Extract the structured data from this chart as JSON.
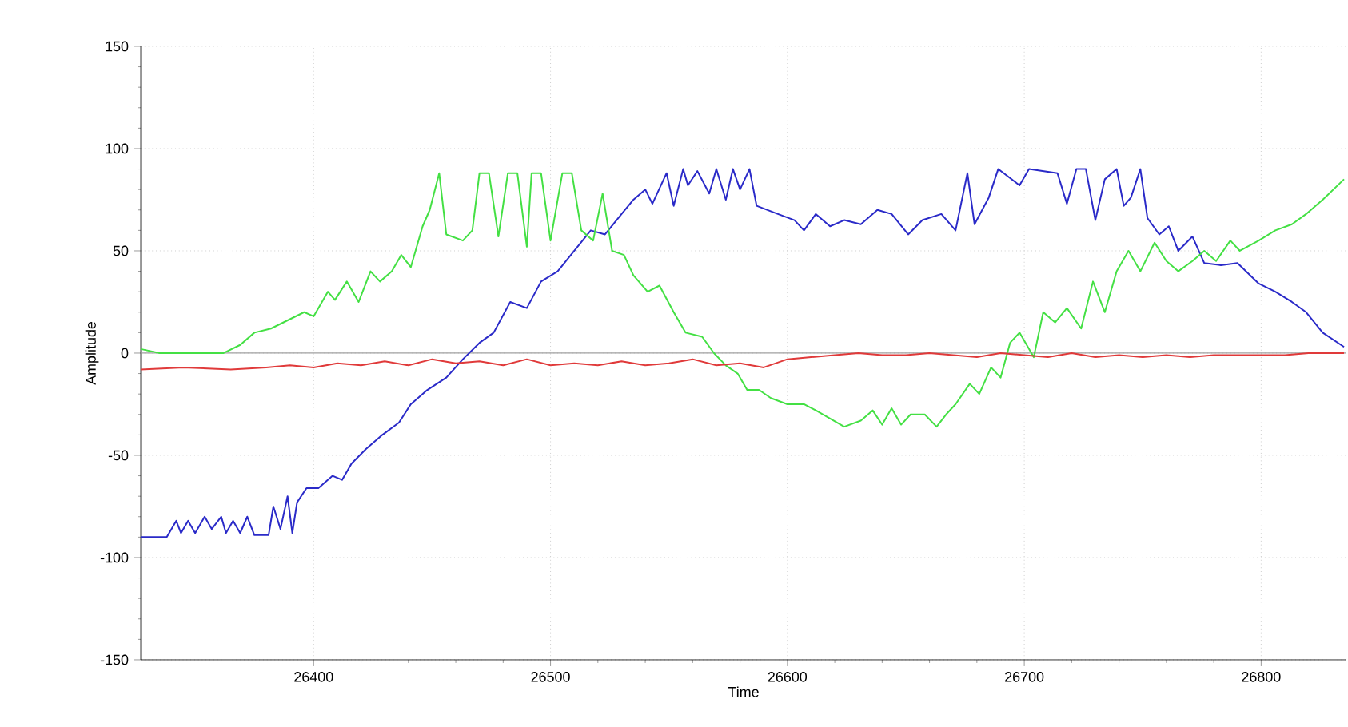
{
  "chart_data": {
    "type": "line",
    "xlabel": "Time",
    "ylabel": "Amplitude",
    "xlim": [
      26327,
      26836
    ],
    "ylim": [
      -150,
      150
    ],
    "xticks": [
      26400,
      26500,
      26600,
      26700,
      26800
    ],
    "yticks": [
      -150,
      -100,
      -50,
      0,
      50,
      100,
      150
    ],
    "grid": true,
    "ref_lines": [
      {
        "axis": "y",
        "value": 0,
        "color": "#a0a0a0"
      }
    ],
    "series": [
      {
        "color": "#2a2ac8",
        "x": [
          26327,
          26338,
          26342,
          26344,
          26347,
          26350,
          26354,
          26357,
          26361,
          26363,
          26366,
          26369,
          26372,
          26375,
          26381,
          26383,
          26386,
          26389,
          26391,
          26393,
          26397,
          26402,
          26408,
          26412,
          26416,
          26422,
          26429,
          26436,
          26441,
          26448,
          26456,
          26463,
          26470,
          26476,
          26483,
          26490,
          26496,
          26503,
          26510,
          26517,
          26523,
          26530,
          26535,
          26540,
          26543,
          26549,
          26552,
          26556,
          26558,
          26562,
          26567,
          26570,
          26574,
          26577,
          26580,
          26584,
          26587,
          26596,
          26603,
          26607,
          26612,
          26618,
          26624,
          26631,
          26638,
          26644,
          26651,
          26657,
          26665,
          26671,
          26676,
          26679,
          26685,
          26689,
          26698,
          26702,
          26714,
          26718,
          26722,
          26726,
          26730,
          26734,
          26739,
          26742,
          26745,
          26749,
          26752,
          26757,
          26761,
          26765,
          26771,
          26776,
          26783,
          26790,
          26799,
          26806,
          26813,
          26819,
          26826,
          26835
        ],
        "values": [
          -90,
          -90,
          -82,
          -88,
          -82,
          -88,
          -80,
          -86,
          -80,
          -88,
          -82,
          -88,
          -80,
          -89,
          -89,
          -75,
          -86,
          -70,
          -88,
          -73,
          -66,
          -66,
          -60,
          -62,
          -54,
          -47,
          -40,
          -34,
          -25,
          -18,
          -12,
          -3,
          5,
          10,
          25,
          22,
          35,
          40,
          50,
          60,
          58,
          68,
          75,
          80,
          73,
          88,
          72,
          90,
          82,
          89,
          78,
          90,
          75,
          90,
          80,
          90,
          72,
          68,
          65,
          60,
          68,
          62,
          65,
          63,
          70,
          68,
          58,
          65,
          68,
          60,
          88,
          63,
          76,
          90,
          82,
          90,
          88,
          73,
          90,
          90,
          65,
          85,
          90,
          72,
          76,
          90,
          66,
          58,
          62,
          50,
          57,
          44,
          43,
          44,
          34,
          30,
          25,
          20,
          10,
          3
        ]
      },
      {
        "color": "#44e044",
        "x": [
          26327,
          26335,
          26349,
          26362,
          26369,
          26375,
          26382,
          26389,
          26396,
          26400,
          26406,
          26409,
          26414,
          26419,
          26424,
          26428,
          26433,
          26437,
          26441,
          26446,
          26449,
          26453,
          26456,
          26463,
          26467,
          26470,
          26474,
          26478,
          26482,
          26486,
          26490,
          26492,
          26496,
          26500,
          26505,
          26509,
          26513,
          26518,
          26522,
          26526,
          26531,
          26535,
          26541,
          26546,
          26552,
          26557,
          26564,
          26569,
          26574,
          26579,
          26583,
          26588,
          26593,
          26600,
          26607,
          26612,
          26618,
          26624,
          26631,
          26636,
          26640,
          26644,
          26648,
          26652,
          26658,
          26663,
          26667,
          26671,
          26677,
          26681,
          26686,
          26690,
          26694,
          26698,
          26704,
          26708,
          26713,
          26718,
          26724,
          26729,
          26734,
          26739,
          26744,
          26749,
          26755,
          26760,
          26765,
          26771,
          26776,
          26781,
          26787,
          26791,
          26799,
          26806,
          26813,
          26819,
          26826,
          26835
        ],
        "values": [
          2,
          0,
          0,
          0,
          4,
          10,
          12,
          16,
          20,
          18,
          30,
          26,
          35,
          25,
          40,
          35,
          40,
          48,
          42,
          62,
          70,
          88,
          58,
          55,
          60,
          88,
          88,
          57,
          88,
          88,
          52,
          88,
          88,
          55,
          88,
          88,
          60,
          55,
          78,
          50,
          48,
          38,
          30,
          33,
          20,
          10,
          8,
          0,
          -6,
          -10,
          -18,
          -18,
          -22,
          -25,
          -25,
          -28,
          -32,
          -36,
          -33,
          -28,
          -35,
          -27,
          -35,
          -30,
          -30,
          -36,
          -30,
          -25,
          -15,
          -20,
          -7,
          -12,
          5,
          10,
          -2,
          20,
          15,
          22,
          12,
          35,
          20,
          40,
          50,
          40,
          54,
          45,
          40,
          45,
          50,
          45,
          55,
          50,
          55,
          60,
          63,
          68,
          75,
          85
        ]
      },
      {
        "color": "#e03a3a",
        "x": [
          26327,
          26345,
          26365,
          26380,
          26390,
          26400,
          26410,
          26420,
          26430,
          26440,
          26450,
          26460,
          26470,
          26480,
          26490,
          26500,
          26510,
          26520,
          26530,
          26540,
          26550,
          26560,
          26570,
          26580,
          26590,
          26600,
          26610,
          26620,
          26630,
          26640,
          26650,
          26660,
          26670,
          26680,
          26690,
          26700,
          26710,
          26720,
          26730,
          26740,
          26750,
          26760,
          26770,
          26780,
          26790,
          26800,
          26810,
          26820,
          26835
        ],
        "values": [
          -8,
          -7,
          -8,
          -7,
          -6,
          -7,
          -5,
          -6,
          -4,
          -6,
          -3,
          -5,
          -4,
          -6,
          -3,
          -6,
          -5,
          -6,
          -4,
          -6,
          -5,
          -3,
          -6,
          -5,
          -7,
          -3,
          -2,
          -1,
          0,
          -1,
          -1,
          0,
          -1,
          -2,
          0,
          -1,
          -2,
          0,
          -2,
          -1,
          -2,
          -1,
          -2,
          -1,
          -1,
          -1,
          -1,
          0,
          0
        ]
      }
    ]
  }
}
